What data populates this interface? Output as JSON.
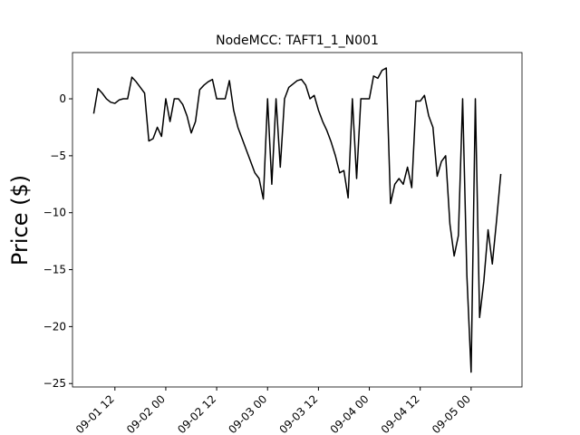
{
  "chart_data": {
    "type": "line",
    "title": "NodeMCC: TAFT1_1_N001",
    "y_label": "Price ($)",
    "x": [
      "09-01 07",
      "09-01 08",
      "09-01 09",
      "09-01 10",
      "09-01 11",
      "09-01 12",
      "09-01 13",
      "09-01 14",
      "09-01 15",
      "09-01 16",
      "09-01 17",
      "09-01 18",
      "09-01 19",
      "09-01 20",
      "09-01 21",
      "09-01 22",
      "09-01 23",
      "09-02 00",
      "09-02 01",
      "09-02 02",
      "09-02 03",
      "09-02 04",
      "09-02 05",
      "09-02 06",
      "09-02 07",
      "09-02 08",
      "09-02 09",
      "09-02 10",
      "09-02 11",
      "09-02 12",
      "09-02 13",
      "09-02 14",
      "09-02 15",
      "09-02 16",
      "09-02 17",
      "09-02 18",
      "09-02 19",
      "09-02 20",
      "09-02 21",
      "09-02 22",
      "09-02 23",
      "09-03 00",
      "09-03 01",
      "09-03 02",
      "09-03 03",
      "09-03 04",
      "09-03 05",
      "09-03 06",
      "09-03 07",
      "09-03 08",
      "09-03 09",
      "09-03 10",
      "09-03 11",
      "09-03 12",
      "09-03 13",
      "09-03 14",
      "09-03 15",
      "09-03 16",
      "09-03 17",
      "09-03 18",
      "09-03 19",
      "09-03 20",
      "09-03 21",
      "09-03 22",
      "09-03 23",
      "09-04 00",
      "09-04 01",
      "09-04 02",
      "09-04 03",
      "09-04 04",
      "09-04 05",
      "09-04 06",
      "09-04 07",
      "09-04 08",
      "09-04 09",
      "09-04 10",
      "09-04 11",
      "09-04 12",
      "09-04 13",
      "09-04 14",
      "09-04 15",
      "09-04 16",
      "09-04 17",
      "09-04 18",
      "09-04 19",
      "09-04 20",
      "09-04 21",
      "09-04 22",
      "09-04 23",
      "09-05 00",
      "09-05 01",
      "09-05 02",
      "09-05 03",
      "09-05 04",
      "09-05 05",
      "09-05 06",
      "09-05 07"
    ],
    "series": [
      {
        "color": "#000000",
        "values": [
          -1.3,
          0.9,
          0.5,
          0,
          -0.3,
          -0.4,
          -0.1,
          0,
          0,
          1.9,
          1.5,
          1.0,
          0.5,
          -3.7,
          -3.5,
          -2.5,
          -3.3,
          0,
          -2.0,
          0,
          0,
          -0.5,
          -1.5,
          -3.0,
          -2.0,
          0.8,
          1.2,
          1.5,
          1.7,
          0,
          0,
          0,
          1.6,
          -1.0,
          -2.5,
          -3.5,
          -4.5,
          -5.5,
          -6.5,
          -7.0,
          -8.8,
          0,
          -7.5,
          0,
          -6.0,
          0,
          1.0,
          1.3,
          1.6,
          1.7,
          1.2,
          0,
          0.3,
          -1.0,
          -2.0,
          -2.8,
          -3.8,
          -5.0,
          -6.5,
          -6.3,
          -8.7,
          0,
          -7.0,
          0,
          0,
          0,
          2.0,
          1.8,
          2.5,
          2.7,
          -9.2,
          -7.5,
          -7.0,
          -7.5,
          -6.0,
          -7.8,
          -0.2,
          -0.2,
          0.3,
          -1.5,
          -2.5,
          -6.8,
          -5.5,
          -5.0,
          -11,
          -13.8,
          -12,
          0,
          -15.5,
          -24,
          0,
          -19.2,
          -16,
          -11.5,
          -14.5,
          -10.7,
          -6.6
        ]
      }
    ],
    "xlim": [
      "09-01 02",
      "09-05 12"
    ],
    "xticks": [
      "09-01 12",
      "09-02 00",
      "09-02 12",
      "09-03 00",
      "09-03 12",
      "09-04 00",
      "09-04 12",
      "09-05 00"
    ],
    "ylim": [
      -25.3,
      4.06
    ],
    "yticks": [
      {
        "value": -25,
        "label": "−25"
      },
      {
        "value": -20,
        "label": "−20"
      },
      {
        "value": -15,
        "label": "−15"
      },
      {
        "value": -10,
        "label": "−10"
      },
      {
        "value": -5,
        "label": "−5"
      },
      0
    ]
  }
}
